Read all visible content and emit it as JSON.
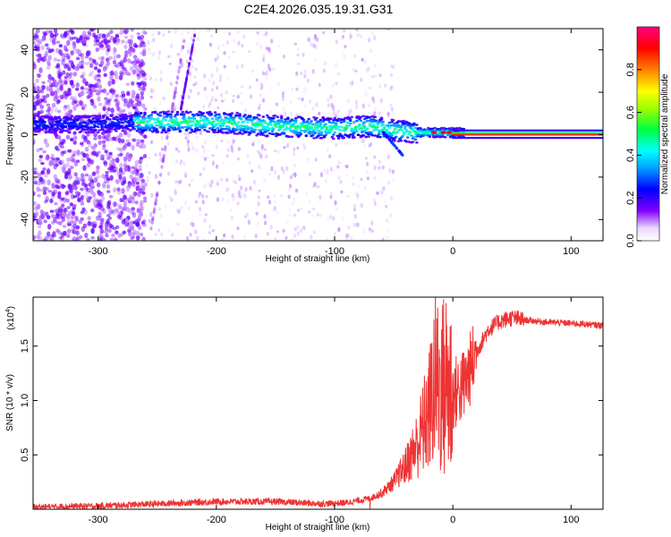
{
  "title": "C2E4.2026.035.19.31.G31",
  "chart_data": [
    {
      "type": "heatmap",
      "name": "spectrogram",
      "xlabel": "Height of straight line (km)",
      "ylabel": "Frequency (Hz)",
      "xlim": [
        -355,
        127
      ],
      "ylim": [
        -50,
        50
      ],
      "xticks": [
        -300,
        -200,
        -100,
        0,
        100
      ],
      "yticks": [
        -40,
        -20,
        0,
        20,
        40
      ],
      "colorbar": {
        "label": "Normalized spectral amplitude",
        "range": [
          0,
          1
        ],
        "ticks": [
          0.0,
          0.2,
          0.4,
          0.6,
          0.8
        ],
        "tick_labels": [
          "0.0",
          "0.2",
          "0.4",
          "0.6",
          "0.8"
        ]
      },
      "ridge": [
        {
          "x": -355,
          "y": 5
        },
        {
          "x": -300,
          "y": 5
        },
        {
          "x": -265,
          "y": 6
        },
        {
          "x": -200,
          "y": 6
        },
        {
          "x": -150,
          "y": 4
        },
        {
          "x": -100,
          "y": 3
        },
        {
          "x": -70,
          "y": 4
        },
        {
          "x": -50,
          "y": 2
        },
        {
          "x": -30,
          "y": 1
        },
        {
          "x": -10,
          "y": 1
        },
        {
          "x": 0,
          "y": 1
        },
        {
          "x": 127,
          "y": 0
        }
      ]
    },
    {
      "type": "line",
      "name": "snr",
      "xlabel": "Height of straight line (km)",
      "ylabel": "SNR (10 * v/v)",
      "multiplier_label": "(x10",
      "multiplier_exp": "4",
      "multiplier_close": ")",
      "xlim": [
        -355,
        127
      ],
      "ylim": [
        0,
        1.95
      ],
      "xticks": [
        -300,
        -200,
        -100,
        0,
        100
      ],
      "yticks": [
        0.5,
        1.0,
        1.5
      ],
      "ytick_labels": [
        "0.5",
        "1.0",
        "1.5"
      ],
      "color": "#ee3333",
      "series": [
        {
          "x": -355,
          "y": 0.02
        },
        {
          "x": -300,
          "y": 0.03
        },
        {
          "x": -250,
          "y": 0.05
        },
        {
          "x": -200,
          "y": 0.07
        },
        {
          "x": -150,
          "y": 0.07
        },
        {
          "x": -110,
          "y": 0.05
        },
        {
          "x": -90,
          "y": 0.06
        },
        {
          "x": -70,
          "y": 0.1
        },
        {
          "x": -60,
          "y": 0.15
        },
        {
          "x": -50,
          "y": 0.25
        },
        {
          "x": -40,
          "y": 0.4
        },
        {
          "x": -30,
          "y": 0.6
        },
        {
          "x": -20,
          "y": 0.9
        },
        {
          "x": -15,
          "y": 1.2
        },
        {
          "x": -10,
          "y": 1.1
        },
        {
          "x": -5,
          "y": 1.15
        },
        {
          "x": 0,
          "y": 1.05
        },
        {
          "x": 10,
          "y": 1.15
        },
        {
          "x": 20,
          "y": 1.45
        },
        {
          "x": 30,
          "y": 1.65
        },
        {
          "x": 40,
          "y": 1.73
        },
        {
          "x": 50,
          "y": 1.76
        },
        {
          "x": 60,
          "y": 1.74
        },
        {
          "x": 80,
          "y": 1.72
        },
        {
          "x": 100,
          "y": 1.71
        },
        {
          "x": 127,
          "y": 1.69
        }
      ]
    }
  ]
}
